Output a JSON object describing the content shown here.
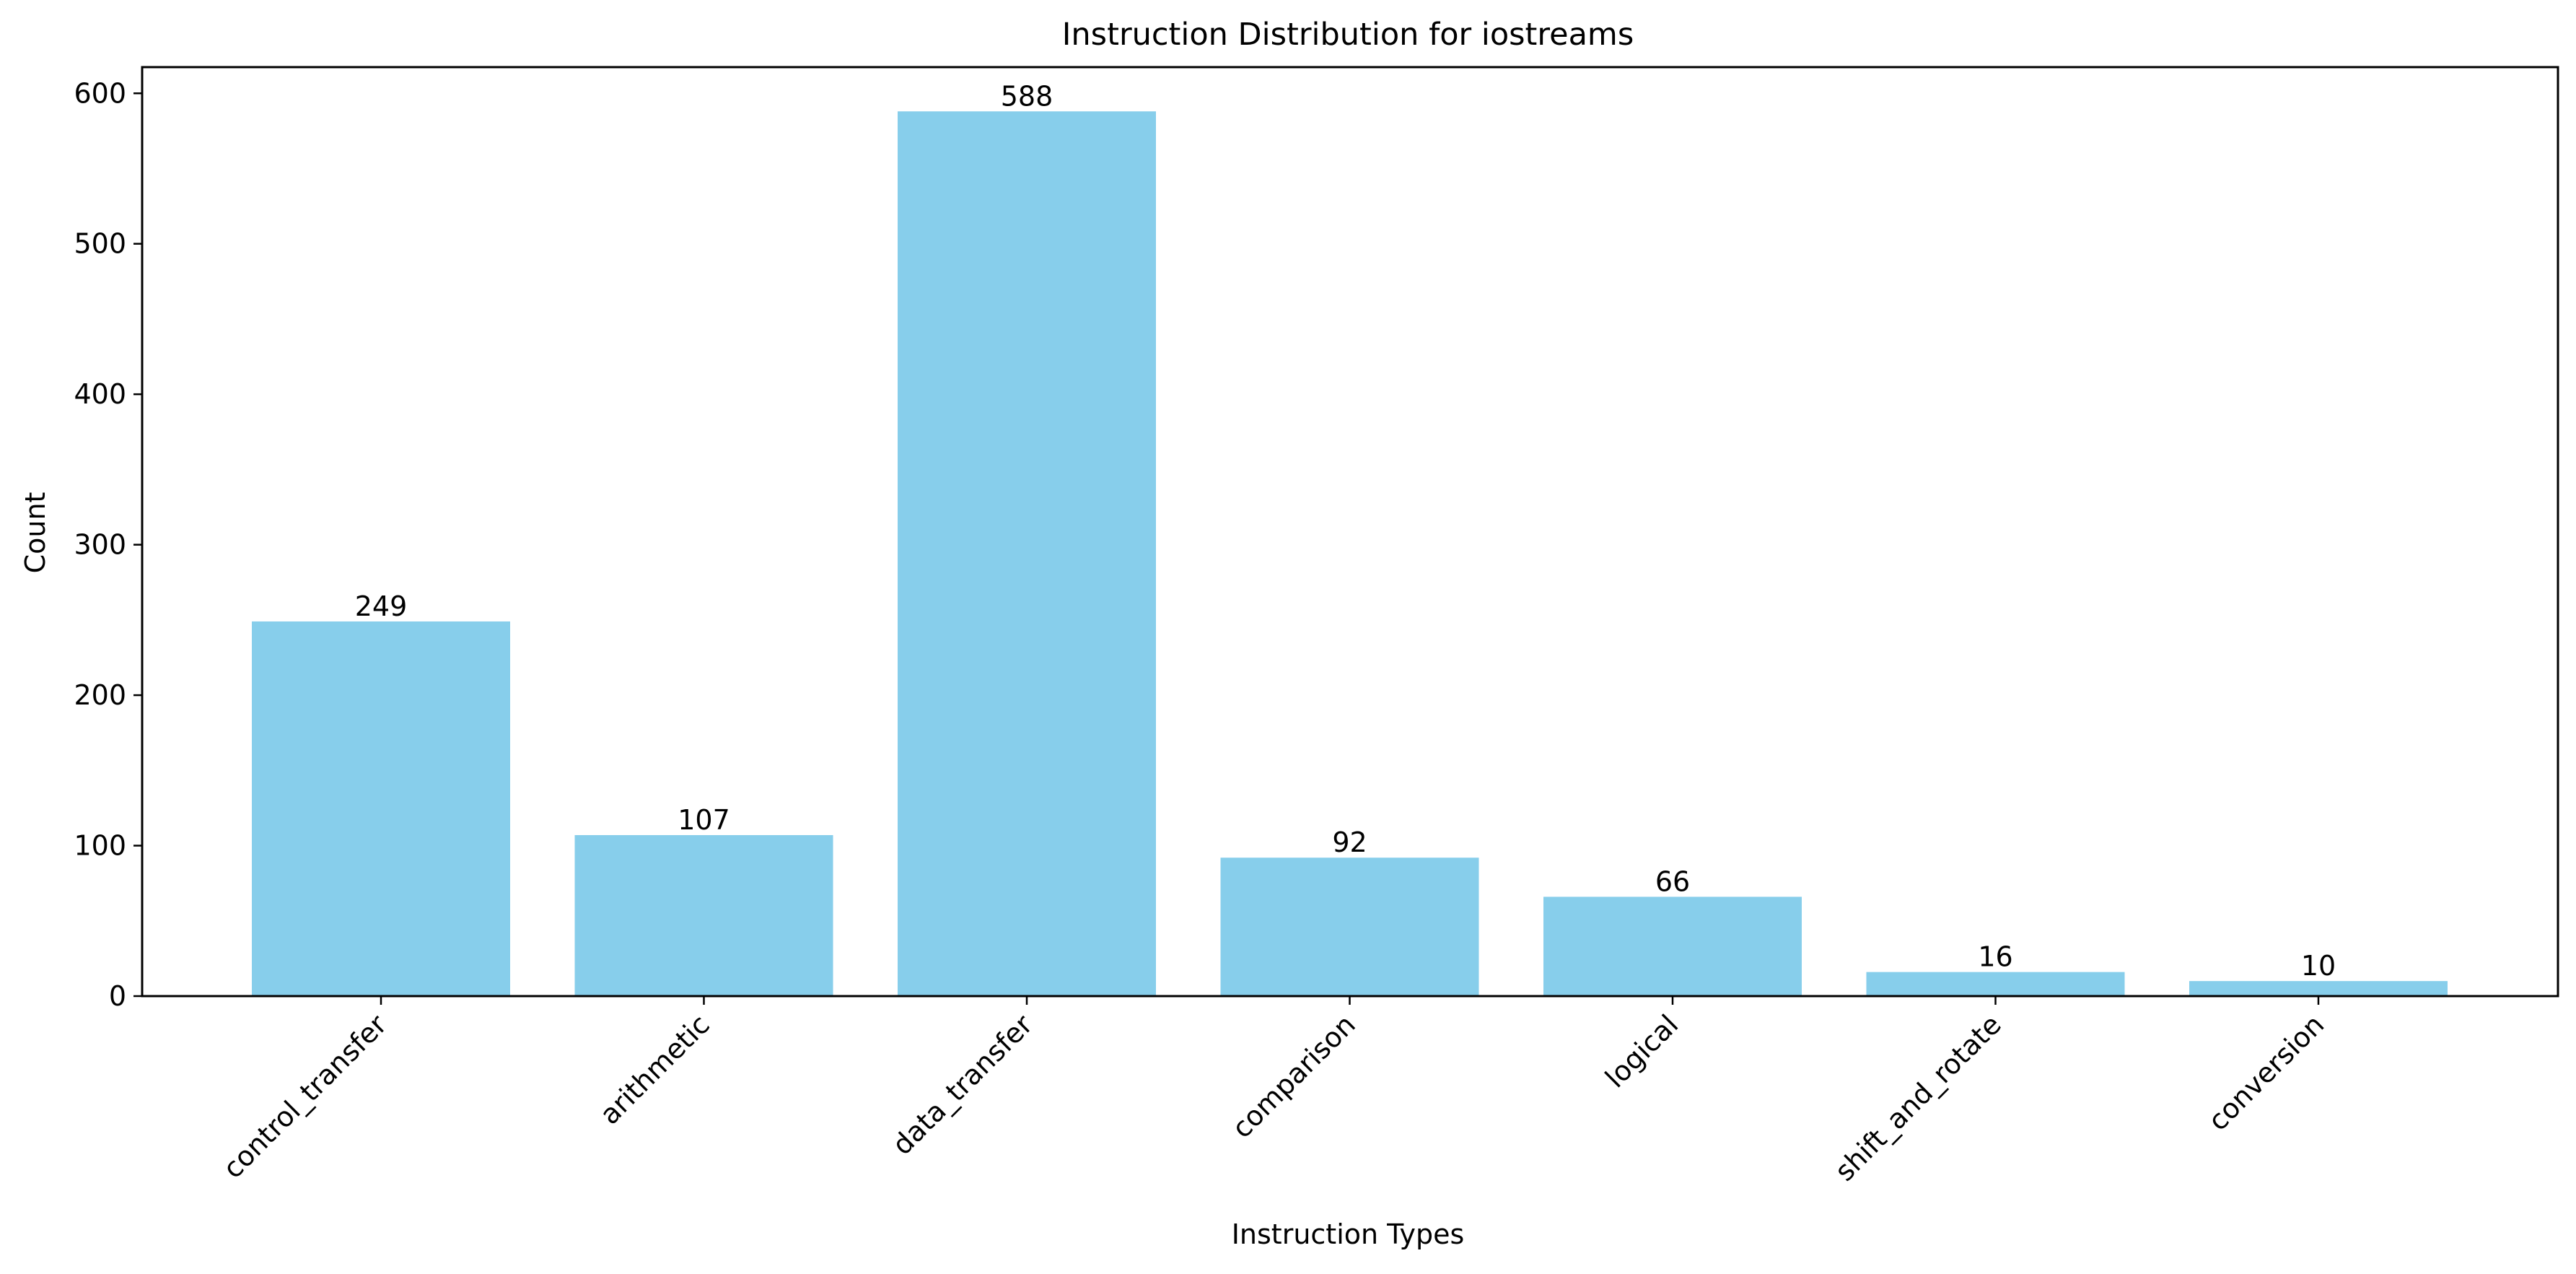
{
  "chart_data": {
    "type": "bar",
    "title": "Instruction Distribution for iostreams",
    "xlabel": "Instruction Types",
    "ylabel": "Count",
    "categories": [
      "control_transfer",
      "arithmetic",
      "data_transfer",
      "comparison",
      "logical",
      "shift_and_rotate",
      "conversion"
    ],
    "values": [
      249,
      107,
      588,
      92,
      66,
      16,
      10
    ],
    "data_labels": [
      "249",
      "107",
      "588",
      "92",
      "66",
      "16",
      "10"
    ],
    "yticks": [
      0,
      100,
      200,
      300,
      400,
      500,
      600
    ],
    "ytick_labels": [
      "0",
      "100",
      "200",
      "300",
      "400",
      "500",
      "600"
    ],
    "ylim": [
      0,
      617.4
    ],
    "grid": false,
    "legend": "none",
    "bar_color": "#87ceeb",
    "axis_color": "#000000",
    "text_color": "#000000",
    "background": "#ffffff"
  }
}
